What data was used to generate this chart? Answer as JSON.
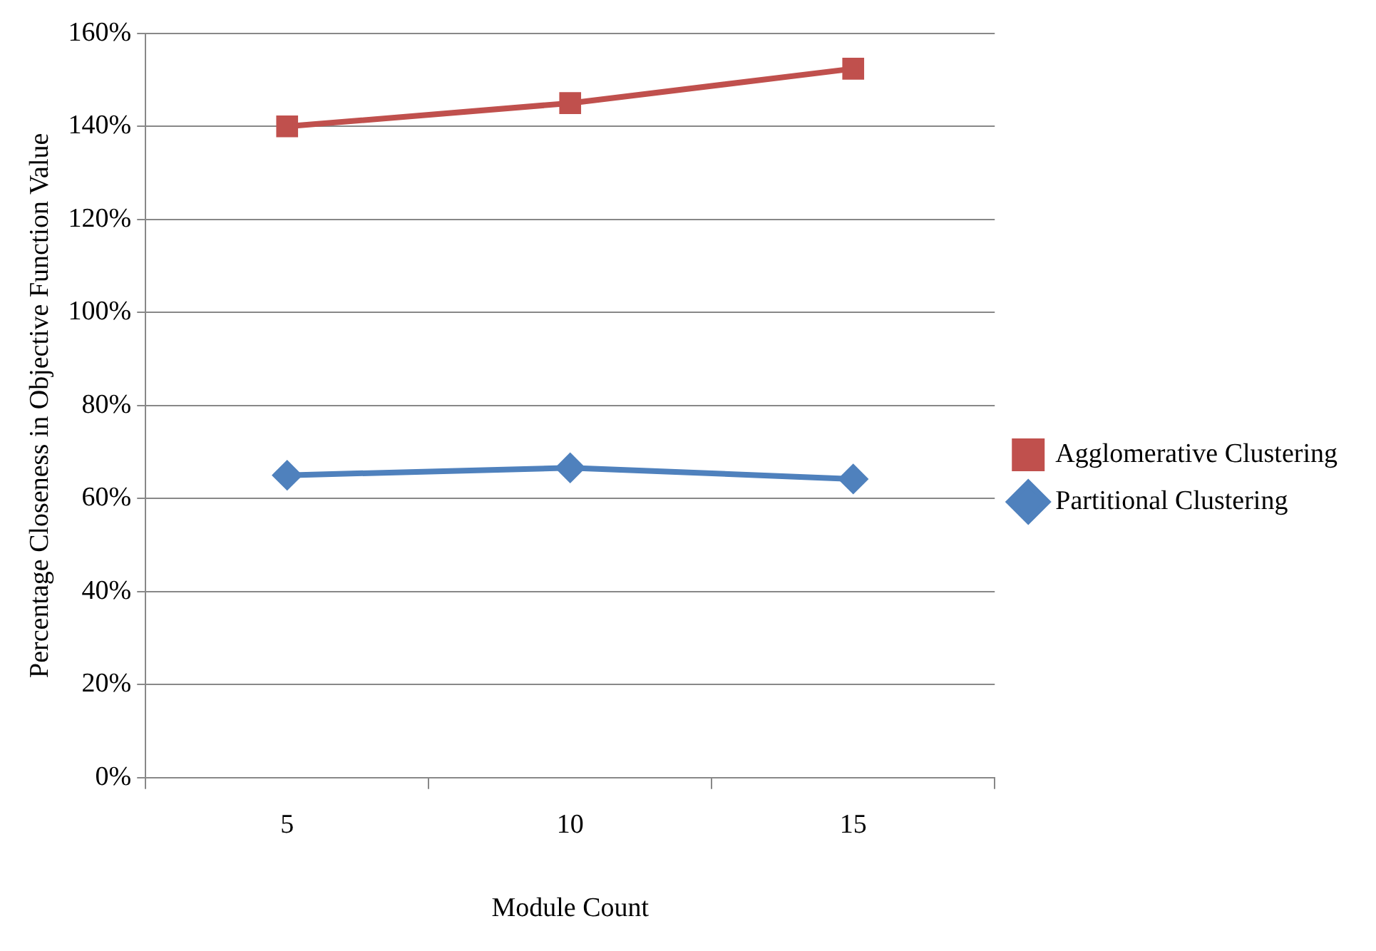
{
  "chart_data": {
    "type": "line",
    "xlabel": "Module Count",
    "ylabel": "Percentage Closeness in Objective Function Value",
    "categories": [
      "5",
      "10",
      "15"
    ],
    "series": [
      {
        "name": "Agglomerative Clustering",
        "color": "#c0504d",
        "marker": "square",
        "values": [
          140,
          145,
          152.4
        ]
      },
      {
        "name": "Partitional Clustering",
        "color": "#4f81bd",
        "marker": "diamond",
        "values": [
          65,
          66.6,
          64.2
        ]
      }
    ],
    "ylim": [
      0,
      160
    ],
    "yticks": [
      {
        "value": 0,
        "label": "0%"
      },
      {
        "value": 20,
        "label": "20%"
      },
      {
        "value": 40,
        "label": "40%"
      },
      {
        "value": 60,
        "label": "60%"
      },
      {
        "value": 80,
        "label": "80%"
      },
      {
        "value": 100,
        "label": "100%"
      },
      {
        "value": 120,
        "label": "120%"
      },
      {
        "value": 140,
        "label": "140%"
      },
      {
        "value": 160,
        "label": "160%"
      }
    ],
    "grid": "y",
    "legend": "right",
    "line_style": "solid"
  }
}
